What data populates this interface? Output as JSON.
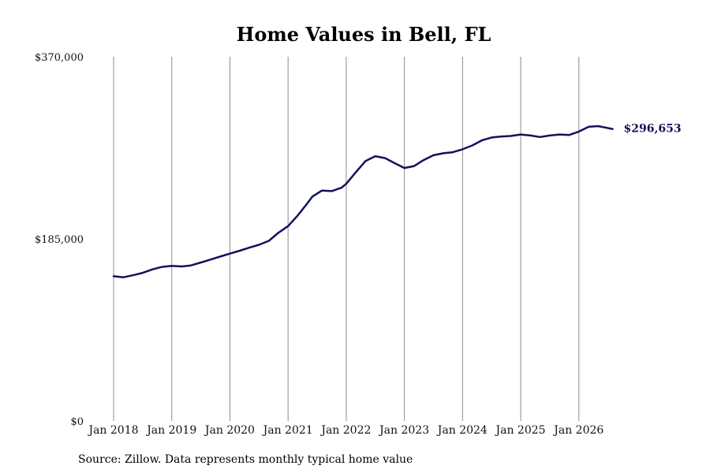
{
  "chart_data": {
    "type": "line",
    "title": "Home Values in Bell, FL",
    "xlabel": "",
    "ylabel": "",
    "ylim": [
      0,
      370000
    ],
    "y_ticks": [
      {
        "value": 0,
        "label": "$0"
      },
      {
        "value": 185000,
        "label": "$185,000"
      },
      {
        "value": 370000,
        "label": "$370,000"
      }
    ],
    "x_ticks": [
      {
        "value": 2018.0,
        "label": "Jan 2018"
      },
      {
        "value": 2019.0,
        "label": "Jan 2019"
      },
      {
        "value": 2020.0,
        "label": "Jan 2020"
      },
      {
        "value": 2021.0,
        "label": "Jan 2021"
      },
      {
        "value": 2022.0,
        "label": "Jan 2022"
      },
      {
        "value": 2023.0,
        "label": "Jan 2023"
      },
      {
        "value": 2024.0,
        "label": "Jan 2024"
      },
      {
        "value": 2025.0,
        "label": "Jan 2025"
      },
      {
        "value": 2026.0,
        "label": "Jan 2026"
      }
    ],
    "xlim": [
      2018.0,
      2026.6
    ],
    "grid": "vertical",
    "line_color": "#12125e",
    "series": [
      {
        "points": [
          [
            2018.0,
            147000
          ],
          [
            2018.17,
            146000
          ],
          [
            2018.33,
            148000
          ],
          [
            2018.5,
            150500
          ],
          [
            2018.67,
            154000
          ],
          [
            2018.83,
            156500
          ],
          [
            2019.0,
            157500
          ],
          [
            2019.17,
            157000
          ],
          [
            2019.33,
            158000
          ],
          [
            2019.5,
            161000
          ],
          [
            2019.67,
            164000
          ],
          [
            2019.83,
            167000
          ],
          [
            2020.0,
            170000
          ],
          [
            2020.17,
            173000
          ],
          [
            2020.33,
            176000
          ],
          [
            2020.5,
            179000
          ],
          [
            2020.67,
            183000
          ],
          [
            2020.83,
            191000
          ],
          [
            2021.0,
            198000
          ],
          [
            2021.17,
            209000
          ],
          [
            2021.33,
            221000
          ],
          [
            2021.42,
            228000
          ],
          [
            2021.58,
            234000
          ],
          [
            2021.75,
            233500
          ],
          [
            2021.92,
            237000
          ],
          [
            2022.0,
            241000
          ],
          [
            2022.17,
            253000
          ],
          [
            2022.33,
            264000
          ],
          [
            2022.5,
            269000
          ],
          [
            2022.67,
            267000
          ],
          [
            2022.83,
            262000
          ],
          [
            2023.0,
            257000
          ],
          [
            2023.17,
            259000
          ],
          [
            2023.33,
            265000
          ],
          [
            2023.5,
            270000
          ],
          [
            2023.67,
            272000
          ],
          [
            2023.83,
            273000
          ],
          [
            2024.0,
            276000
          ],
          [
            2024.17,
            280000
          ],
          [
            2024.33,
            285000
          ],
          [
            2024.5,
            288000
          ],
          [
            2024.67,
            289000
          ],
          [
            2024.83,
            289500
          ],
          [
            2025.0,
            291000
          ],
          [
            2025.17,
            290000
          ],
          [
            2025.33,
            288500
          ],
          [
            2025.5,
            290000
          ],
          [
            2025.67,
            291000
          ],
          [
            2025.83,
            290500
          ],
          [
            2026.0,
            294000
          ],
          [
            2026.17,
            299000
          ],
          [
            2026.33,
            299500
          ],
          [
            2026.58,
            296653
          ]
        ]
      }
    ],
    "end_label": "$296,653"
  },
  "source": "Source: Zillow. Data represents monthly typical home value"
}
